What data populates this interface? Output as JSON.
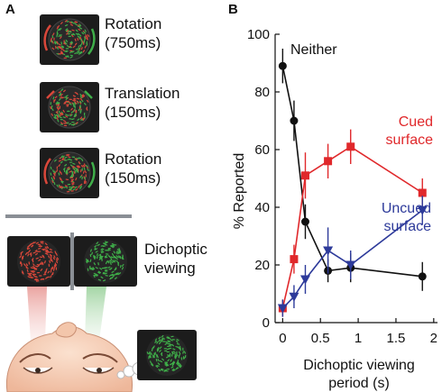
{
  "panel_a": {
    "letter": "A",
    "stimuli": [
      {
        "line1": "Rotation",
        "line2": "(750ms)",
        "icon": "rotating-dot-field"
      },
      {
        "line1": "Translation",
        "line2": "(150ms)",
        "icon": "translating-dot-field"
      },
      {
        "line1": "Rotation",
        "line2": "(150ms)",
        "icon": "rotating-dot-field"
      }
    ],
    "dichoptic_label_1": "Dichoptic",
    "dichoptic_label_2": "viewing",
    "colors": {
      "red_dots": "#d9473a",
      "green_dots": "#3fae49",
      "monitor": "#1c1c1c",
      "divider": "#8a8f95"
    }
  },
  "panel_b": {
    "letter": "B"
  },
  "chart_data": {
    "type": "line",
    "xlabel": "Dichoptic viewing period (s)",
    "xlabel_line1": "Dichoptic viewing",
    "xlabel_line2": "period (s)",
    "ylabel": "% Reported",
    "xlim": [
      -0.1,
      2.05
    ],
    "ylim": [
      0,
      100
    ],
    "xticks": [
      "0",
      "0.5",
      "1",
      "1.5",
      "2"
    ],
    "xtick_values": [
      0,
      0.5,
      1,
      1.5,
      2
    ],
    "yticks": [
      "0",
      "20",
      "40",
      "60",
      "80",
      "100"
    ],
    "ytick_values": [
      0,
      20,
      40,
      60,
      80,
      100
    ],
    "grid": false,
    "series": [
      {
        "label_lines": [
          "Neither"
        ],
        "color": "#111111",
        "marker": "circle",
        "x": [
          0,
          0.15,
          0.3,
          0.6,
          0.9,
          1.85
        ],
        "y": [
          89,
          70,
          35,
          18,
          19,
          16
        ],
        "err": [
          6,
          7,
          6,
          4,
          5,
          5
        ]
      },
      {
        "label_lines": [
          "Cued",
          "surface"
        ],
        "color": "#e0282b",
        "marker": "square",
        "x": [
          0,
          0.15,
          0.3,
          0.6,
          0.9,
          1.85
        ],
        "y": [
          5,
          22,
          51,
          56,
          61,
          45
        ],
        "err": [
          3,
          5,
          8,
          6,
          6,
          5
        ]
      },
      {
        "label_lines": [
          "Uncued",
          "surface"
        ],
        "color": "#2d3a9a",
        "marker": "triangle-down",
        "x": [
          0,
          0.15,
          0.3,
          0.6,
          0.9,
          1.85
        ],
        "y": [
          5,
          9,
          15,
          25,
          20,
          39
        ],
        "err": [
          3,
          4,
          5,
          8,
          5,
          5
        ]
      }
    ]
  }
}
